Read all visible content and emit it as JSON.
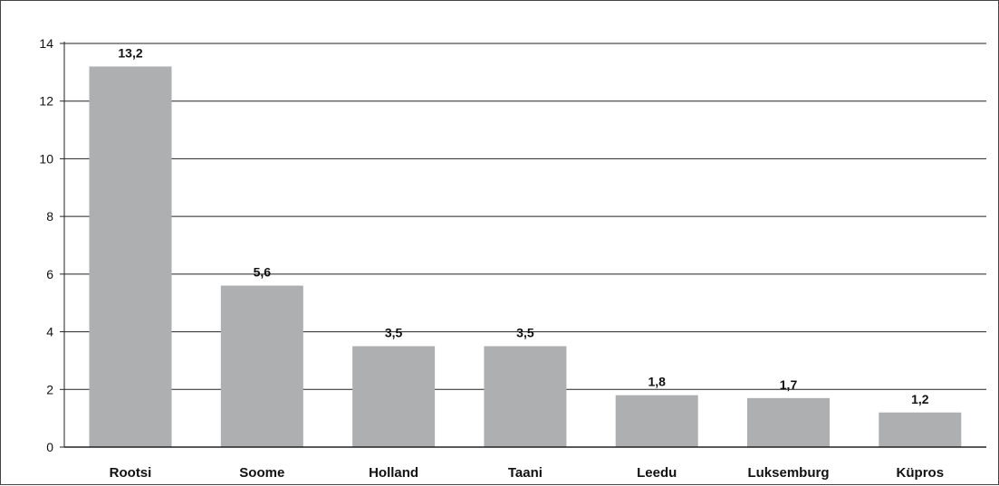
{
  "chart_data": {
    "type": "bar",
    "title": "",
    "xlabel": "",
    "ylabel": "",
    "categories": [
      "Rootsi",
      "Soome",
      "Holland",
      "Taani",
      "Leedu",
      "Luksemburg",
      "Küpros"
    ],
    "values": [
      13.2,
      5.6,
      3.5,
      3.5,
      1.8,
      1.7,
      1.2
    ],
    "value_labels": [
      "13,2",
      "5,6",
      "3,5",
      "3,5",
      "1,8",
      "1,7",
      "1,2"
    ],
    "yticks": [
      0,
      2,
      4,
      6,
      8,
      10,
      12,
      14
    ],
    "ylim": [
      0,
      14
    ],
    "grid": true,
    "legend": "none",
    "bar_color": "#aeafb1",
    "grid_color": "#222222"
  }
}
